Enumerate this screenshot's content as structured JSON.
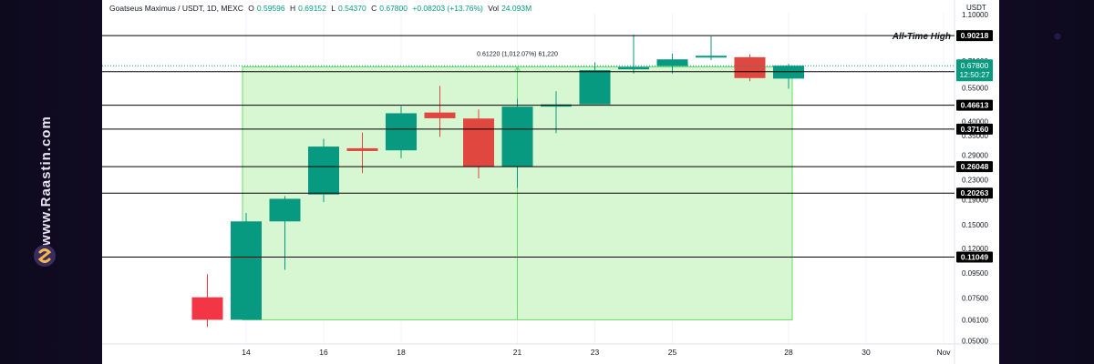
{
  "header": {
    "symbol": "Goatseus Maximus / USDT, 1D, MEXC",
    "open_label": "O",
    "open": "0.59596",
    "high_label": "H",
    "high": "0.69152",
    "low_label": "L",
    "low": "0.54370",
    "close_label": "C",
    "close": "0.67800",
    "change": "+0.08203 (+13.76%)",
    "vol_label": "Vol",
    "vol": "24.093M"
  },
  "price_scale": {
    "currency": "USDT"
  },
  "watermark": {
    "text": "www.Raastin.com"
  },
  "colors": {
    "up": "#089981",
    "down": "#e0473e",
    "down_bright": "#f23645",
    "range_fill": "#d7f7d2",
    "range_border": "#66dd66"
  },
  "chart_data": {
    "type": "candlestick",
    "title": "",
    "xlabel": "",
    "ylabel": "",
    "y_scale": "log",
    "ylim": [
      0.0485,
      1.12
    ],
    "x_ticks": [
      {
        "x": 14,
        "label": "14"
      },
      {
        "x": 16,
        "label": "16"
      },
      {
        "x": 18,
        "label": "18"
      },
      {
        "x": 21,
        "label": "21"
      },
      {
        "x": 23,
        "label": "23"
      },
      {
        "x": 25,
        "label": "25"
      },
      {
        "x": 28,
        "label": "28"
      },
      {
        "x": 30,
        "label": "30"
      },
      {
        "x": 32,
        "label": "Nov"
      }
    ],
    "y_ticks": [
      "1.10000",
      "0.71000",
      "0.55000",
      "0.40000",
      "0.35000",
      "0.29000",
      "0.23000",
      "0.19000",
      "0.15000",
      "0.12000",
      "0.09500",
      "0.07500",
      "0.06100",
      "0.05000"
    ],
    "candles": [
      {
        "x": 13,
        "o": 0.061,
        "h": 0.094,
        "l": 0.057,
        "c": 0.0755,
        "dir": "down_bright"
      },
      {
        "x": 14,
        "o": 0.061,
        "h": 0.168,
        "l": 0.061,
        "c": 0.155,
        "dir": "up"
      },
      {
        "x": 15,
        "o": 0.155,
        "h": 0.197,
        "l": 0.098,
        "c": 0.192,
        "dir": "up"
      },
      {
        "x": 16,
        "o": 0.2,
        "h": 0.339,
        "l": 0.186,
        "c": 0.315,
        "dir": "up"
      },
      {
        "x": 17,
        "o": 0.31,
        "h": 0.36,
        "l": 0.245,
        "c": 0.302,
        "dir": "down"
      },
      {
        "x": 18,
        "o": 0.304,
        "h": 0.462,
        "l": 0.282,
        "c": 0.432,
        "dir": "up"
      },
      {
        "x": 19,
        "o": 0.435,
        "h": 0.56,
        "l": 0.345,
        "c": 0.412,
        "dir": "down"
      },
      {
        "x": 20,
        "o": 0.411,
        "h": 0.448,
        "l": 0.233,
        "c": 0.26,
        "dir": "down"
      },
      {
        "x": 21,
        "o": 0.26,
        "h": 0.495,
        "l": 0.213,
        "c": 0.46,
        "dir": "up"
      },
      {
        "x": 22,
        "o": 0.46,
        "h": 0.532,
        "l": 0.358,
        "c": 0.47,
        "dir": "up"
      },
      {
        "x": 23,
        "o": 0.47,
        "h": 0.7,
        "l": 0.47,
        "c": 0.65,
        "dir": "up"
      },
      {
        "x": 24,
        "o": 0.655,
        "h": 0.91,
        "l": 0.63,
        "c": 0.67,
        "dir": "up"
      },
      {
        "x": 25,
        "o": 0.675,
        "h": 0.76,
        "l": 0.63,
        "c": 0.72,
        "dir": "up"
      },
      {
        "x": 26,
        "o": 0.735,
        "h": 0.895,
        "l": 0.715,
        "c": 0.745,
        "dir": "up"
      },
      {
        "x": 27,
        "o": 0.735,
        "h": 0.755,
        "l": 0.585,
        "c": 0.603,
        "dir": "down"
      },
      {
        "x": 28,
        "o": 0.6,
        "h": 0.69,
        "l": 0.545,
        "c": 0.678,
        "dir": "up"
      }
    ],
    "levels": [
      {
        "price": 0.90218,
        "label": "0.90218",
        "annotation": "All-Time High"
      },
      {
        "price": 0.64099,
        "label": "0.64099"
      },
      {
        "price": 0.46613,
        "label": "0.46613"
      },
      {
        "price": 0.3716,
        "label": "0.37160"
      },
      {
        "price": 0.26048,
        "label": "0.26048"
      },
      {
        "price": 0.20263,
        "label": "0.20263"
      },
      {
        "price": 0.11049,
        "label": "0.11049"
      }
    ],
    "current_price": {
      "price": 0.678,
      "label": "0.67800",
      "countdown": "12:50:27"
    },
    "range_box": {
      "x_from": 14,
      "x_to": 28,
      "y_from": 0.061,
      "y_to": 0.67,
      "measure_x": 21,
      "label": "0.61220 (1,012.07%) 61,220"
    }
  }
}
